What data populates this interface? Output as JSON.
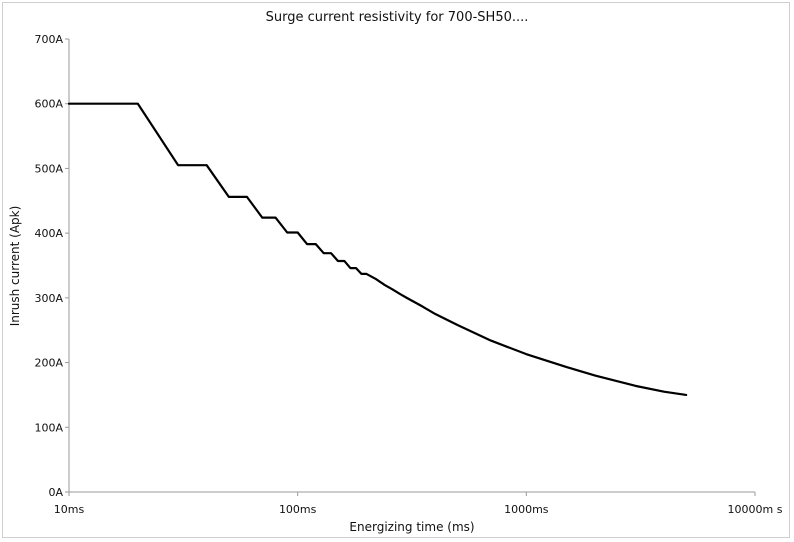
{
  "chart_data": {
    "type": "line",
    "title": "Surge current resistivity for 700-SH50....",
    "xlabel": "Energizing time (ms)",
    "ylabel": "Inrush current (Apk)",
    "x_scale": "log",
    "xlim": [
      10,
      10000
    ],
    "ylim": [
      0,
      700
    ],
    "x_ticks": [
      10,
      100,
      1000,
      10000
    ],
    "x_tick_labels": [
      "10ms",
      "100ms",
      "1000ms",
      "10000m s"
    ],
    "y_ticks": [
      0,
      100,
      200,
      300,
      400,
      500,
      600,
      700
    ],
    "y_tick_labels": [
      "0A",
      "100A",
      "200A",
      "300A",
      "400A",
      "500A",
      "600A",
      "700A"
    ],
    "grid": false,
    "line_color": "#000000",
    "series": [
      {
        "x": [
          10,
          20,
          30,
          40,
          50,
          60,
          70,
          80,
          90,
          100,
          110,
          120,
          130,
          140,
          150,
          160,
          170,
          180,
          190,
          200,
          220,
          240,
          260,
          280,
          300,
          350,
          400,
          500,
          700,
          1000,
          1500,
          2000,
          3000,
          4000,
          5000
        ],
        "y": [
          600,
          600,
          505,
          505,
          456,
          456,
          424,
          424,
          401,
          401,
          383,
          383,
          369,
          369,
          357,
          357,
          346,
          346,
          337,
          337,
          329,
          320,
          313,
          306,
          300,
          287,
          275,
          258,
          234,
          213,
          193,
          180,
          164,
          155,
          150
        ]
      }
    ]
  }
}
